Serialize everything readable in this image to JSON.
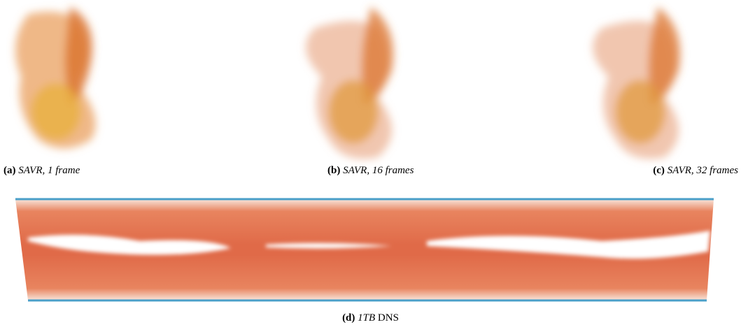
{
  "figures": [
    {
      "label": "(a)",
      "caption": "SAVR, 1 frame"
    },
    {
      "label": "(b)",
      "caption": "SAVR, 16 frames"
    },
    {
      "label": "(c)",
      "caption": "SAVR, 32 frames"
    },
    {
      "label": "(d)",
      "caption_italic": "1TB",
      "caption_rest": "DNS"
    }
  ]
}
